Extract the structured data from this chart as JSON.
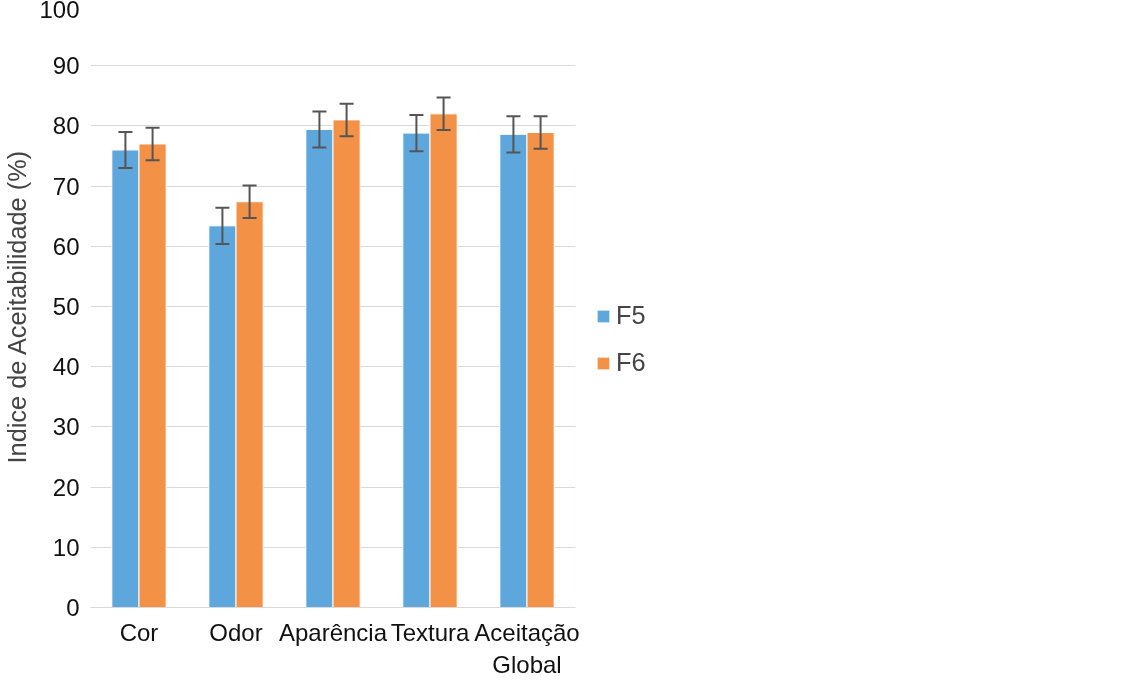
{
  "chart_data": {
    "type": "bar",
    "ylabel": "Indice de Aceitabilidade (%)",
    "categories": [
      "Cor",
      "Odor",
      "Aparência",
      "Textura",
      "Aceitação Global"
    ],
    "series": [
      {
        "name": "F5",
        "color": "#5ea7dc",
        "values": [
          76,
          63.4,
          79.4,
          78.8,
          78.6
        ],
        "errors": [
          3,
          3,
          3,
          3,
          3
        ]
      },
      {
        "name": "F6",
        "color": "#f39147",
        "values": [
          77,
          67.4,
          81,
          82,
          78.9
        ],
        "errors": [
          2.7,
          2.7,
          2.7,
          2.7,
          2.7
        ]
      }
    ],
    "ylim": [
      0,
      100
    ],
    "yticks": [
      0,
      10,
      20,
      30,
      40,
      50,
      60,
      70,
      80,
      90,
      100
    ],
    "grid": "y",
    "legend": "right"
  }
}
